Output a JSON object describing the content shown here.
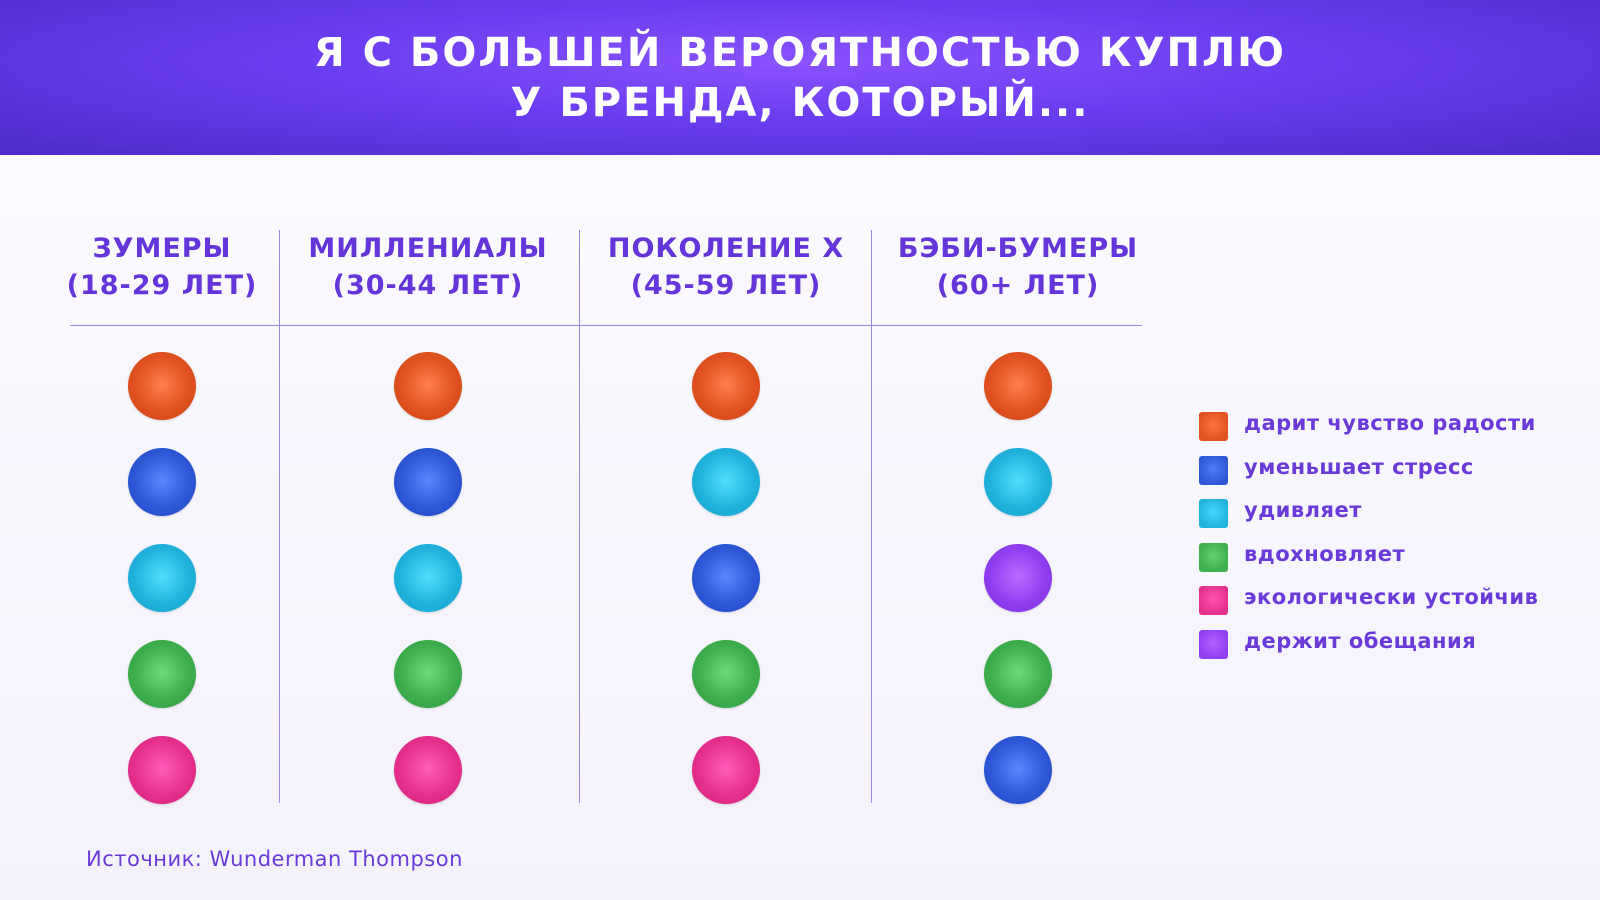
{
  "title": {
    "line1": "Я С БОЛЬШЕЙ ВЕРОЯТНОСТЬЮ КУПЛЮ",
    "line2": "У БРЕНДА, КОТОРЫЙ..."
  },
  "colors": {
    "header": "#6a3cf0",
    "text": "#6436d9",
    "joy": "#e0521f",
    "stress": "#2f58d6",
    "surprise": "#22b3dc",
    "inspire": "#3fae4e",
    "eco": "#e6308e",
    "promise": "#8f3ff0"
  },
  "chart_data": {
    "type": "table",
    "columns": [
      {
        "name": "ЗУМЕРЫ",
        "age": "(18-29 ЛЕТ)",
        "ranking": [
          "joy",
          "stress",
          "surprise",
          "inspire",
          "eco"
        ]
      },
      {
        "name": "МИЛЛЕНИАЛЫ",
        "age": "(30-44 ЛЕТ)",
        "ranking": [
          "joy",
          "stress",
          "surprise",
          "inspire",
          "eco"
        ]
      },
      {
        "name": "ПОКОЛЕНИЕ X",
        "age": "(45-59 ЛЕТ)",
        "ranking": [
          "joy",
          "surprise",
          "stress",
          "inspire",
          "eco"
        ]
      },
      {
        "name": "БЭБИ-БУМЕРЫ",
        "age": "(60+ ЛЕТ)",
        "ranking": [
          "joy",
          "surprise",
          "promise",
          "inspire",
          "stress"
        ]
      }
    ],
    "legend": [
      {
        "key": "joy",
        "label": "дарит чувство радости"
      },
      {
        "key": "stress",
        "label": "уменьшает стресс"
      },
      {
        "key": "surprise",
        "label": "удивляет"
      },
      {
        "key": "inspire",
        "label": "вдохновляет"
      },
      {
        "key": "eco",
        "label": "экологически устойчив"
      },
      {
        "key": "promise",
        "label": "держит обещания"
      }
    ]
  },
  "source": "Источник: Wunderman Thompson"
}
